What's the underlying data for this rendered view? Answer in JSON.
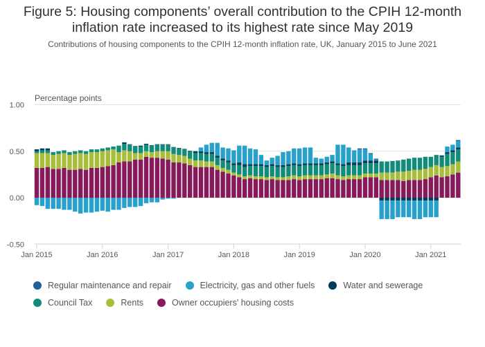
{
  "chart_data": {
    "type": "bar",
    "stacked": true,
    "title": "Figure 5: Housing components’ overall contribution to the CPIH 12-month inflation rate increased to its highest rate since May 2019",
    "subtitle": "Contributions of housing components to the CPIH 12-month inflation rate, UK, January 2015 to June 2021",
    "ylabel": "Percentage points",
    "xlabel": "",
    "ylim": [
      -0.5,
      1.0
    ],
    "yticks": [
      "1.00",
      "0.50",
      "0.00",
      "-0.50"
    ],
    "ytick_values": [
      1.0,
      0.5,
      0.0,
      -0.5
    ],
    "xticks": [
      "Jan 2015",
      "Jan 2016",
      "Jan 2017",
      "Jan 2018",
      "Jan 2019",
      "Jan 2020",
      "Jan 2021"
    ],
    "xtick_index": [
      0,
      12,
      24,
      36,
      48,
      60,
      72
    ],
    "grid": true,
    "legend_position": "bottom",
    "x_start": "Jan 2015",
    "x_end": "Jun 2021",
    "series": [
      {
        "name": "Owner occupiers' housing costs",
        "color": "#871a5b",
        "values": [
          0.32,
          0.32,
          0.33,
          0.31,
          0.31,
          0.32,
          0.3,
          0.3,
          0.31,
          0.3,
          0.32,
          0.32,
          0.33,
          0.34,
          0.35,
          0.38,
          0.39,
          0.39,
          0.41,
          0.41,
          0.44,
          0.43,
          0.43,
          0.42,
          0.41,
          0.38,
          0.38,
          0.37,
          0.35,
          0.33,
          0.33,
          0.33,
          0.33,
          0.3,
          0.28,
          0.26,
          0.24,
          0.22,
          0.2,
          0.21,
          0.2,
          0.2,
          0.19,
          0.2,
          0.19,
          0.19,
          0.19,
          0.2,
          0.19,
          0.2,
          0.2,
          0.2,
          0.2,
          0.21,
          0.21,
          0.2,
          0.19,
          0.2,
          0.2,
          0.2,
          0.22,
          0.22,
          0.22,
          0.19,
          0.19,
          0.19,
          0.19,
          0.18,
          0.19,
          0.19,
          0.19,
          0.2,
          0.22,
          0.24,
          0.22,
          0.23,
          0.25,
          0.27
        ]
      },
      {
        "name": "Rents",
        "color": "#a8bd3a",
        "values": [
          0.16,
          0.16,
          0.15,
          0.15,
          0.16,
          0.16,
          0.16,
          0.17,
          0.17,
          0.17,
          0.17,
          0.17,
          0.17,
          0.17,
          0.17,
          0.11,
          0.12,
          0.11,
          0.07,
          0.07,
          0.06,
          0.06,
          0.07,
          0.08,
          0.09,
          0.09,
          0.08,
          0.08,
          0.07,
          0.07,
          0.07,
          0.06,
          0.06,
          0.05,
          0.04,
          0.04,
          0.03,
          0.03,
          0.03,
          0.03,
          0.03,
          0.03,
          0.03,
          0.03,
          0.03,
          0.03,
          0.04,
          0.04,
          0.04,
          0.04,
          0.04,
          0.04,
          0.04,
          0.04,
          0.05,
          0.04,
          0.04,
          0.04,
          0.04,
          0.04,
          0.04,
          0.04,
          0.04,
          0.08,
          0.08,
          0.08,
          0.09,
          0.1,
          0.1,
          0.11,
          0.11,
          0.11,
          0.11,
          0.11,
          0.11,
          0.11,
          0.11,
          0.12
        ]
      },
      {
        "name": "Council Tax",
        "color": "#118c7b",
        "values": [
          0.02,
          0.03,
          0.03,
          0.03,
          0.03,
          0.03,
          0.03,
          0.03,
          0.03,
          0.03,
          0.03,
          0.03,
          0.03,
          0.03,
          0.03,
          0.07,
          0.07,
          0.07,
          0.07,
          0.07,
          0.07,
          0.07,
          0.07,
          0.07,
          0.07,
          0.07,
          0.07,
          0.07,
          0.08,
          0.08,
          0.08,
          0.08,
          0.08,
          0.08,
          0.08,
          0.08,
          0.08,
          0.1,
          0.1,
          0.1,
          0.11,
          0.11,
          0.11,
          0.11,
          0.11,
          0.11,
          0.11,
          0.11,
          0.11,
          0.11,
          0.11,
          0.11,
          0.11,
          0.11,
          0.11,
          0.11,
          0.11,
          0.11,
          0.11,
          0.11,
          0.11,
          0.11,
          0.11,
          0.12,
          0.12,
          0.12,
          0.12,
          0.13,
          0.13,
          0.13,
          0.13,
          0.13,
          0.11,
          0.11,
          0.11,
          0.13,
          0.13,
          0.13
        ]
      },
      {
        "name": "Water and sewerage",
        "color": "#003c57",
        "values": [
          0.02,
          0.02,
          0.02,
          0.0,
          0.0,
          0.0,
          0.0,
          0.0,
          0.0,
          0.0,
          0.0,
          0.0,
          0.0,
          0.0,
          0.0,
          0.0,
          0.015,
          0.005,
          0.005,
          0.01,
          0.01,
          0.005,
          0.005,
          0.005,
          0.005,
          0.005,
          0.005,
          0.005,
          0.005,
          0.02,
          0.02,
          0.02,
          0.02,
          0.02,
          0.02,
          0.02,
          0.02,
          0.03,
          0.03,
          0.02,
          0.02,
          0.02,
          0.02,
          0.02,
          0.02,
          0.02,
          0.02,
          0.02,
          0.02,
          0.02,
          0.02,
          0.02,
          0.02,
          0.02,
          0.02,
          0.02,
          0.02,
          0.03,
          0.03,
          0.03,
          0.03,
          0.03,
          0.03,
          -0.03,
          -0.03,
          -0.03,
          -0.03,
          -0.03,
          -0.03,
          -0.03,
          -0.03,
          -0.03,
          -0.03,
          -0.03,
          0.015,
          0.02,
          0.02,
          0.02
        ]
      },
      {
        "name": "Electricity, gas and other fuels",
        "color": "#27a0cc",
        "values": [
          -0.08,
          -0.09,
          -0.12,
          -0.12,
          -0.12,
          -0.13,
          -0.13,
          -0.15,
          -0.17,
          -0.16,
          -0.16,
          -0.15,
          -0.14,
          -0.15,
          -0.13,
          -0.13,
          -0.11,
          -0.1,
          -0.1,
          -0.09,
          -0.06,
          -0.05,
          -0.05,
          -0.02,
          -0.01,
          -0.01,
          0.0,
          0.0,
          0.0,
          0.0,
          0.04,
          0.08,
          0.1,
          0.14,
          0.12,
          0.13,
          0.14,
          0.18,
          0.2,
          0.17,
          0.16,
          0.1,
          0.05,
          0.07,
          0.1,
          0.14,
          0.14,
          0.16,
          0.17,
          0.17,
          0.17,
          0.06,
          0.05,
          0.06,
          0.07,
          0.2,
          0.21,
          0.16,
          0.13,
          0.14,
          0.12,
          0.07,
          0.01,
          -0.2,
          -0.2,
          -0.2,
          -0.18,
          -0.18,
          -0.18,
          -0.2,
          -0.2,
          -0.18,
          -0.18,
          -0.18,
          0.0,
          0.06,
          0.06,
          0.07
        ]
      },
      {
        "name": "Regular maintenance and repair",
        "color": "#206095",
        "values": [
          0.0,
          0.0,
          0.0,
          0.0,
          0.0,
          0.0,
          0.0,
          0.0,
          0.0,
          0.0,
          0.0,
          0.0,
          0.0,
          0.0,
          0.0,
          0.0,
          0.0,
          0.0,
          0.0,
          0.0,
          0.0,
          0.0,
          0.0,
          0.0,
          0.0,
          0.0,
          0.0,
          0.0,
          0.0,
          0.0,
          0.0,
          0.0,
          0.0,
          0.0,
          0.0,
          0.0,
          0.0,
          0.0,
          0.0,
          0.0,
          0.0,
          0.0,
          0.0,
          0.0,
          0.0,
          0.0,
          0.0,
          0.0,
          0.0,
          0.0,
          0.0,
          0.0,
          0.0,
          0.0,
          0.0,
          0.0,
          0.0,
          0.0,
          0.0,
          0.01,
          0.01,
          0.01,
          0.01,
          0.0,
          0.0,
          0.005,
          0.0,
          0.0,
          0.0,
          0.0,
          0.0,
          0.0,
          0.0,
          0.0,
          0.0,
          0.0,
          0.0,
          0.01
        ]
      }
    ]
  },
  "legend": {
    "items": [
      {
        "label": "Regular maintenance and repair",
        "color": "#206095"
      },
      {
        "label": "Electricity, gas and other fuels",
        "color": "#27a0cc"
      },
      {
        "label": "Water and sewerage",
        "color": "#003c57"
      },
      {
        "label": "Council Tax",
        "color": "#118c7b"
      },
      {
        "label": "Rents",
        "color": "#a8bd3a"
      },
      {
        "label": "Owner occupiers' housing costs",
        "color": "#871a5b"
      }
    ]
  }
}
